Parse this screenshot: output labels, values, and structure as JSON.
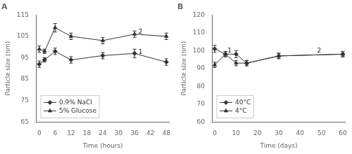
{
  "chart_data": [
    {
      "type": "line",
      "title": "A",
      "x_label": "Time (hours)",
      "y_label": "Particle size (nm)",
      "xlim": [
        -1,
        49
      ],
      "xticks": [
        0,
        6,
        12,
        18,
        24,
        30,
        36,
        42,
        48
      ],
      "ylim": [
        65,
        115
      ],
      "yticks": [
        65,
        75,
        85,
        95,
        105,
        115
      ],
      "grid": false,
      "legend": "lower left",
      "series": [
        {
          "name": "0.9% NaCl",
          "color": "#333333",
          "marker": "diamond",
          "line_style": "solid",
          "x": [
            0,
            2,
            6,
            12,
            24,
            36,
            48
          ],
          "values": [
            92,
            94,
            98,
            94,
            96,
            97,
            93
          ],
          "errors": [
            1.5,
            1.0,
            1.5,
            1.5,
            1.5,
            2.0,
            1.5
          ]
        },
        {
          "name": "5% Glucose",
          "color": "#333333",
          "marker": "triangle",
          "line_style": "solid",
          "x": [
            0,
            2,
            6,
            12,
            24,
            36,
            48
          ],
          "values": [
            99,
            98,
            109,
            105,
            103,
            106,
            105
          ],
          "errors": [
            1.5,
            1.0,
            2.0,
            1.5,
            1.5,
            1.5,
            1.5
          ]
        }
      ],
      "annotations": [
        {
          "text": "1",
          "x": 37.5,
          "y": 97.5
        },
        {
          "text": "2",
          "x": 37.5,
          "y": 107
        }
      ]
    },
    {
      "type": "line",
      "title": "B",
      "x_label": "Time (days)",
      "y_label": "Particle size (nm)",
      "xlim": [
        -1,
        61
      ],
      "xticks": [
        0,
        10,
        20,
        30,
        40,
        50,
        60
      ],
      "ylim": [
        60,
        120
      ],
      "yticks": [
        60,
        70,
        80,
        90,
        100,
        110,
        120
      ],
      "grid": false,
      "legend": "lower left",
      "series": [
        {
          "name": "40°C",
          "color": "#333333",
          "marker": "diamond",
          "line_style": "solid",
          "x": [
            0,
            5,
            10,
            15,
            30,
            60
          ],
          "values": [
            101,
            98,
            98,
            93,
            97,
            98
          ],
          "errors": [
            2.0,
            1.5,
            2.0,
            1.5,
            1.5,
            1.5
          ]
        },
        {
          "name": "4°C",
          "color": "#333333",
          "marker": "triangle",
          "line_style": "solid",
          "x": [
            0,
            5,
            10,
            15,
            30,
            60
          ],
          "values": [
            92,
            98,
            93,
            93,
            97,
            98
          ],
          "errors": [
            1.5,
            1.5,
            1.5,
            1.5,
            1.5,
            1.5
          ]
        }
      ],
      "annotations": [
        {
          "text": "1",
          "x": 6,
          "y": 100
        },
        {
          "text": "2",
          "x": 48,
          "y": 100
        }
      ]
    }
  ]
}
